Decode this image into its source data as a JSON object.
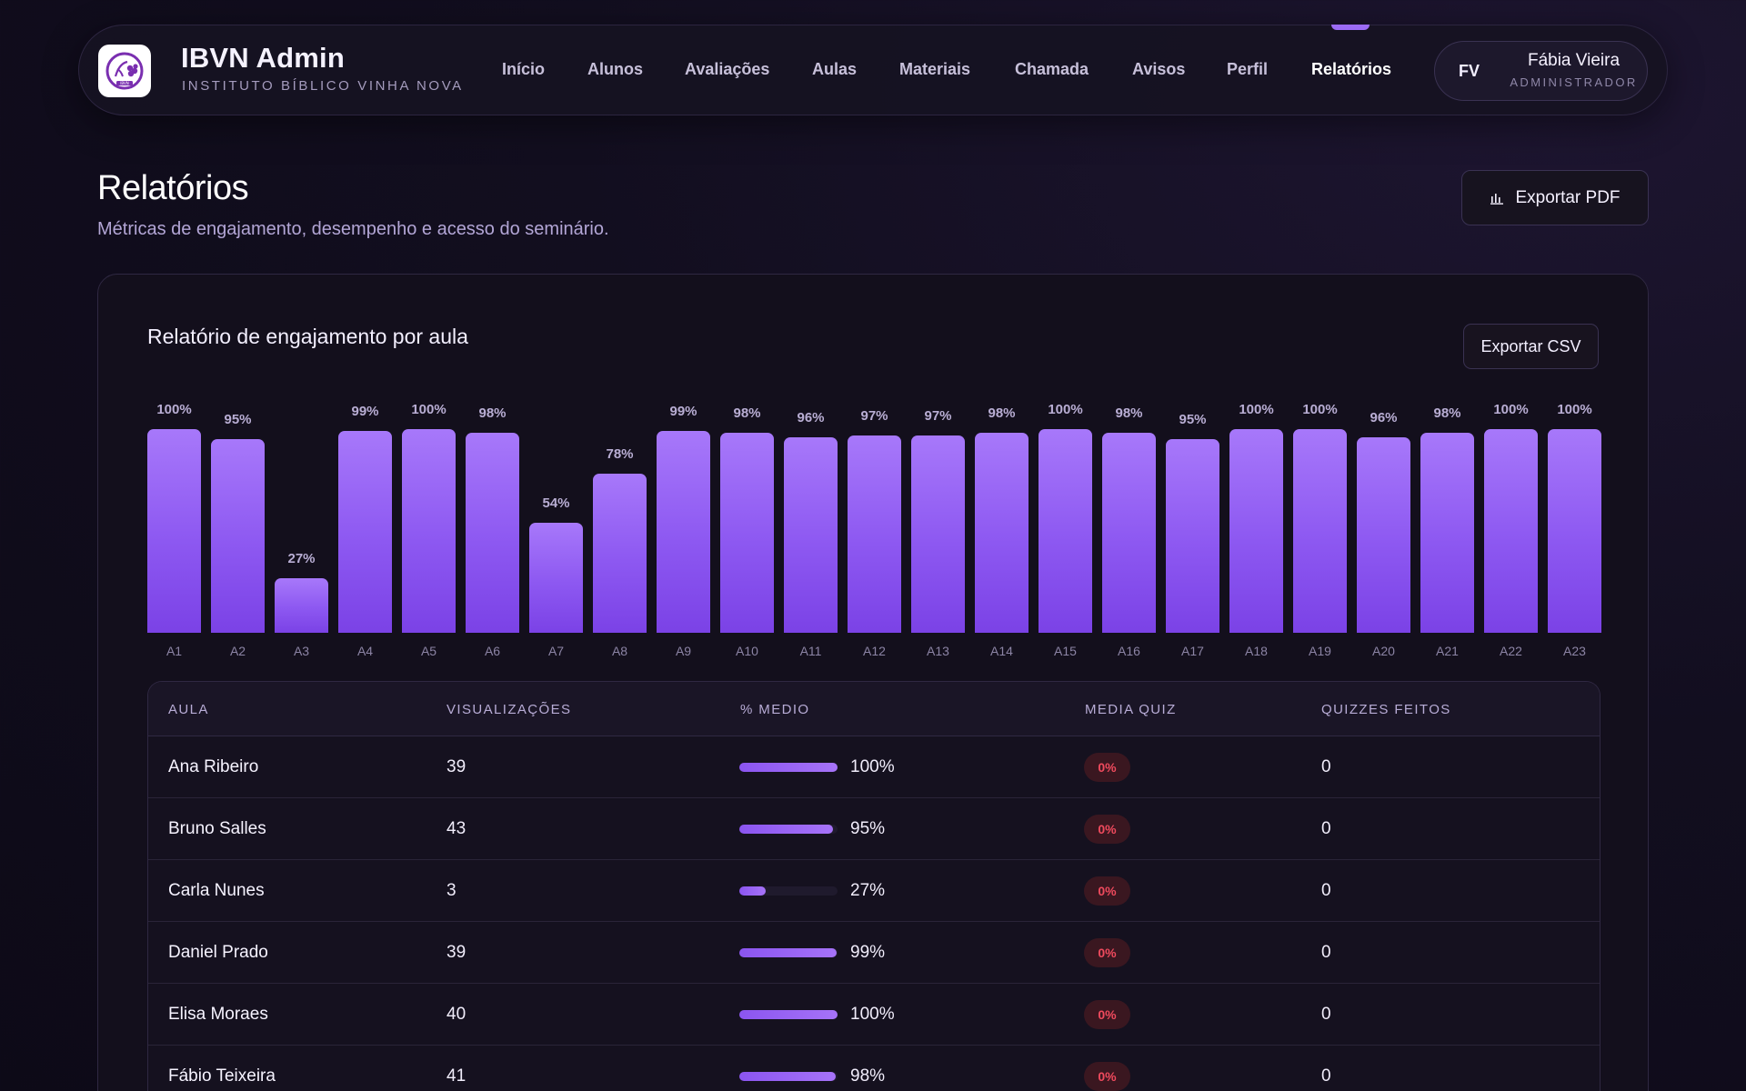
{
  "brand": {
    "title": "IBVN Admin",
    "subtitle": "INSTITUTO BÍBLICO VINHA NOVA",
    "logo_text": "IBVN"
  },
  "nav": {
    "items": [
      {
        "label": "Início"
      },
      {
        "label": "Alunos"
      },
      {
        "label": "Avaliações"
      },
      {
        "label": "Aulas"
      },
      {
        "label": "Materiais"
      },
      {
        "label": "Chamada"
      },
      {
        "label": "Avisos"
      },
      {
        "label": "Perfil"
      },
      {
        "label": "Relatórios",
        "active": true
      }
    ]
  },
  "user": {
    "initials": "FV",
    "name": "Fábia Vieira",
    "role": "ADMINISTRADOR"
  },
  "page": {
    "title": "Relatórios",
    "subtitle": "Métricas de engajamento, desempenho e acesso do seminário.",
    "export_pdf_label": "Exportar PDF"
  },
  "card": {
    "title": "Relatório de engajamento por aula",
    "export_csv_label": "Exportar CSV"
  },
  "chart_data": {
    "type": "bar",
    "categories": [
      "A1",
      "A2",
      "A3",
      "A4",
      "A5",
      "A6",
      "A7",
      "A8",
      "A9",
      "A10",
      "A11",
      "A12",
      "A13",
      "A14",
      "A15",
      "A16",
      "A17",
      "A18",
      "A19",
      "A20",
      "A21",
      "A22",
      "A23"
    ],
    "values": [
      100,
      95,
      27,
      99,
      100,
      98,
      54,
      78,
      99,
      98,
      96,
      97,
      97,
      98,
      100,
      98,
      95,
      100,
      100,
      96,
      98,
      100,
      100
    ],
    "value_labels": [
      "100%",
      "95%",
      "27%",
      "99%",
      "100%",
      "98%",
      "54%",
      "78%",
      "99%",
      "98%",
      "96%",
      "97%",
      "97%",
      "98%",
      "100%",
      "98%",
      "95%",
      "100%",
      "100%",
      "96%",
      "98%",
      "100%",
      "100%"
    ],
    "ylim": [
      0,
      100
    ],
    "grid": false,
    "legend": "none"
  },
  "table": {
    "headers": [
      "AULA",
      "VISUALIZAÇÕES",
      "% MEDIO",
      "MEDIA QUIZ",
      "QUIZZES FEITOS"
    ],
    "rows": [
      {
        "name": "Ana Ribeiro",
        "views": "39",
        "pct_value": 100,
        "pct": "100%",
        "quiz": "0%",
        "done": "0"
      },
      {
        "name": "Bruno Salles",
        "views": "43",
        "pct_value": 95,
        "pct": "95%",
        "quiz": "0%",
        "done": "0"
      },
      {
        "name": "Carla Nunes",
        "views": "3",
        "pct_value": 27,
        "pct": "27%",
        "quiz": "0%",
        "done": "0"
      },
      {
        "name": "Daniel Prado",
        "views": "39",
        "pct_value": 99,
        "pct": "99%",
        "quiz": "0%",
        "done": "0"
      },
      {
        "name": "Elisa Moraes",
        "views": "40",
        "pct_value": 100,
        "pct": "100%",
        "quiz": "0%",
        "done": "0"
      },
      {
        "name": "Fábio Teixeira",
        "views": "41",
        "pct_value": 98,
        "pct": "98%",
        "quiz": "0%",
        "done": "0"
      }
    ]
  },
  "colors": {
    "accent": "#9b6bf5",
    "bar": "#8d58f1",
    "quiz_badge_text": "#ef4a5d",
    "quiz_badge_bg": "#3a1720"
  },
  "icons": {
    "export_pdf": "bar-chart-icon"
  }
}
